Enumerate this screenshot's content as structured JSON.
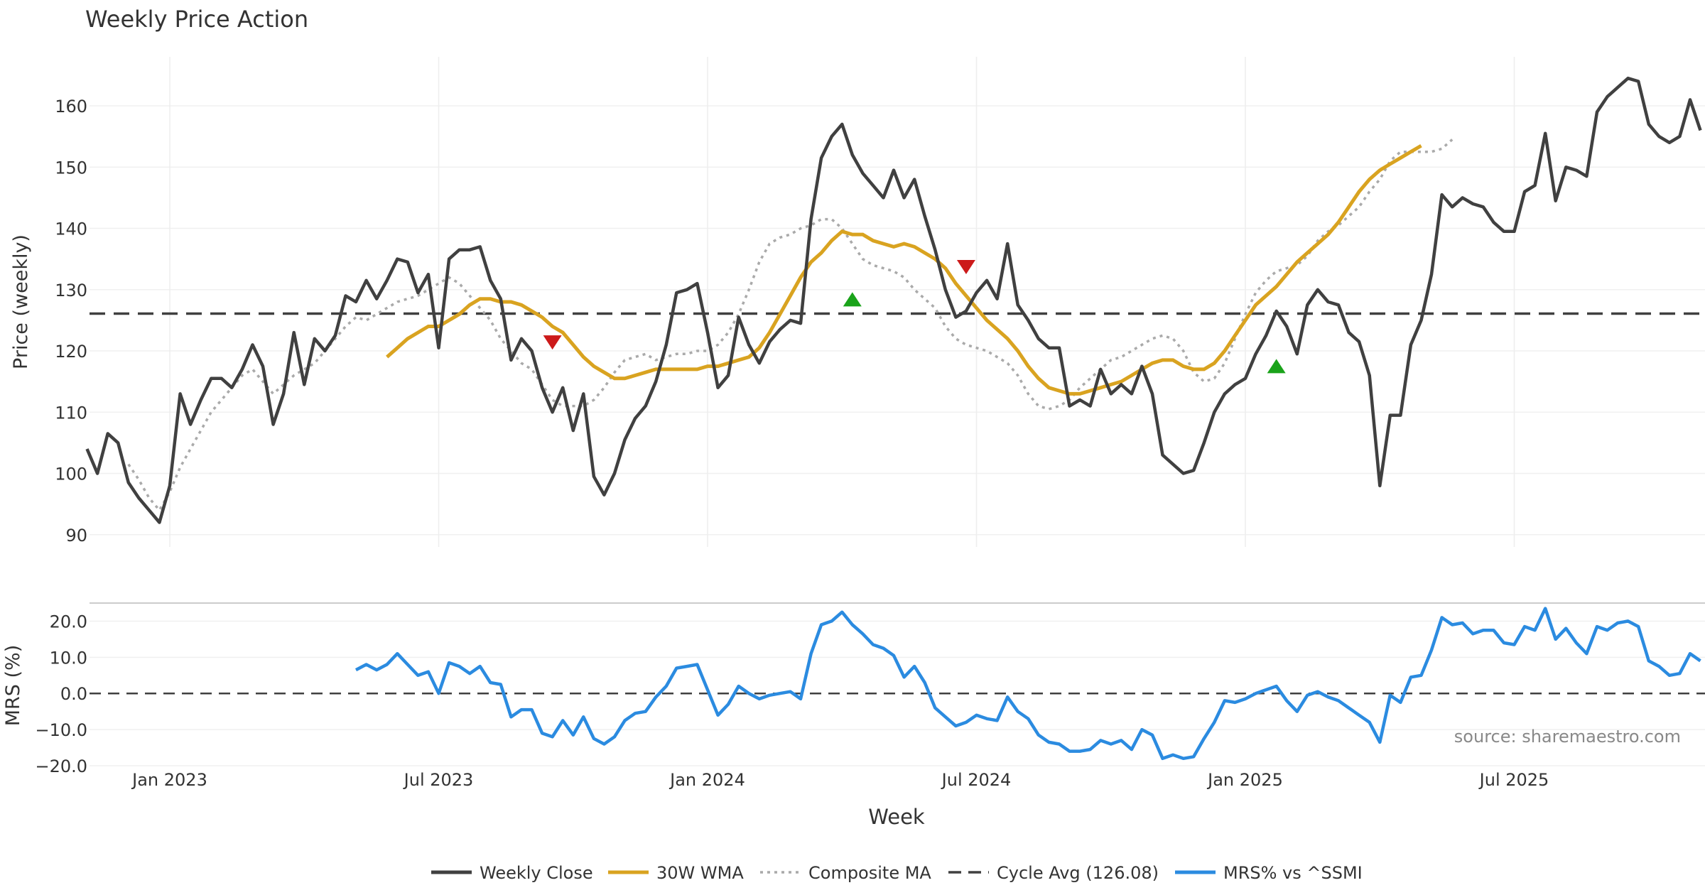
{
  "chart_data": {
    "type": "line",
    "title": "Weekly Price Action",
    "xlabel": "Week",
    "x_tick_labels": [
      "Jan 2023",
      "Jul 2023",
      "Jan 2024",
      "Jul 2024",
      "Jan 2025",
      "Jul 2025"
    ],
    "x_tick_weeks": [
      0,
      26,
      52,
      78,
      104,
      130
    ],
    "price_panel": {
      "ylabel": "Price (weekly)",
      "ylim": [
        88,
        168
      ],
      "yticks": [
        90,
        100,
        110,
        120,
        130,
        140,
        150,
        160
      ],
      "series": [
        {
          "name": "Weekly Close",
          "color": "#404040",
          "start_week": -8,
          "values": [
            104,
            100,
            106.5,
            105,
            98.5,
            96,
            94,
            92,
            98,
            113,
            108,
            112,
            115.5,
            115.5,
            114,
            117,
            121,
            117.5,
            108,
            113,
            123,
            114.5,
            122,
            120,
            122.5,
            129,
            128,
            131.5,
            128.5,
            131.5,
            135,
            134.5,
            129.5,
            132.5,
            120.5,
            135,
            136.5,
            136.5,
            137,
            131.5,
            128.5,
            118.5,
            122,
            120,
            114,
            110,
            114,
            107,
            113,
            99.5,
            96.5,
            100,
            105.5,
            109,
            111,
            115,
            121,
            129.5,
            130,
            131,
            123,
            114,
            116,
            125.5,
            121,
            118,
            121.5,
            123.5,
            125,
            124.5,
            141.5,
            151.5,
            155,
            157,
            152,
            149,
            147,
            145,
            149.5,
            145,
            148,
            142,
            136.5,
            130,
            125.5,
            126.5,
            129.5,
            131.5,
            128.5,
            137.5,
            127.5,
            125,
            122,
            120.5,
            120.5,
            111,
            112,
            111,
            117,
            113,
            114.5,
            113,
            117.5,
            113,
            103,
            101.5,
            100,
            100.5,
            105,
            110,
            113,
            114.5,
            115.5,
            119.5,
            122.5,
            126.5,
            124,
            119.5,
            127.5,
            130,
            128,
            127.5,
            123,
            121.5,
            116,
            98,
            109.5,
            109.5,
            121,
            125,
            132.5,
            145.5,
            143.5,
            145,
            144,
            143.5,
            141,
            139.5,
            139.5,
            146,
            147,
            155.5,
            144.5,
            150,
            149.5,
            148.5,
            159,
            161.5,
            163,
            164.5,
            164,
            157,
            155,
            154,
            155,
            161,
            156
          ]
        },
        {
          "name": "30W WMA",
          "color": "#d9a320",
          "start_week": 21,
          "values": [
            119,
            120.5,
            122,
            123,
            124,
            124,
            125,
            126,
            127.5,
            128.5,
            128.5,
            128,
            128,
            127.5,
            126.5,
            125.5,
            124,
            123,
            121,
            119,
            117.5,
            116.5,
            115.5,
            115.5,
            116,
            116.5,
            117,
            117,
            117,
            117,
            117,
            117.5,
            117.5,
            118,
            118.5,
            119,
            120.5,
            123,
            126,
            129,
            132,
            134.5,
            136,
            138,
            139.5,
            139,
            139,
            138,
            137.5,
            137,
            137.5,
            137,
            136,
            135,
            133.5,
            131,
            129,
            127,
            125,
            123.5,
            122,
            120,
            117.5,
            115.5,
            114,
            113.5,
            113,
            113,
            113.5,
            114,
            114.5,
            115,
            116,
            117,
            118,
            118.5,
            118.5,
            117.5,
            117,
            117,
            118,
            120,
            122.5,
            125,
            127.5,
            129,
            130.5,
            132.5,
            134.5,
            136,
            137.5,
            139,
            141,
            143.5,
            146,
            148,
            149.5,
            150.5,
            151.5,
            152.5,
            153.5
          ]
        },
        {
          "name": "Composite MA",
          "color": "#aaaaaa",
          "start_week": -4,
          "values": [
            101.5,
            99,
            96,
            94,
            97,
            101,
            104,
            107,
            110,
            112,
            114,
            116,
            117,
            115,
            113,
            114.5,
            116,
            117,
            118,
            120,
            122,
            124,
            125.5,
            125,
            126,
            127,
            128,
            128.5,
            129,
            130,
            131,
            132,
            131,
            129,
            127,
            125,
            122,
            120,
            118,
            117,
            114.5,
            112,
            111,
            111,
            111,
            112,
            114,
            116.5,
            118.5,
            119,
            119.5,
            118.5,
            119,
            119.5,
            119.5,
            120,
            120,
            121,
            123,
            126,
            130,
            134.5,
            137.5,
            138.5,
            139,
            140,
            140.5,
            141.5,
            141.5,
            140,
            137.5,
            135,
            134,
            133.5,
            133,
            132,
            130,
            128.5,
            127,
            124,
            122,
            121,
            120.5,
            120,
            119,
            118,
            116,
            113,
            111,
            110.5,
            111,
            112,
            114,
            115.5,
            117,
            118.5,
            119,
            120,
            121,
            122,
            122.5,
            122,
            120,
            116.5,
            115,
            115.5,
            118,
            122,
            126,
            129.5,
            131.5,
            133,
            133.5,
            134,
            135.5,
            138,
            139.5,
            140.5,
            142,
            143.5,
            146,
            148,
            151,
            152.5,
            152.5,
            152.5,
            152.5,
            153,
            154.5
          ]
        },
        {
          "name": "Cycle Avg (126.08)",
          "color": "#404040",
          "constant": 126.08
        }
      ],
      "buy_signals": [
        {
          "week": 66,
          "price": 128.3
        },
        {
          "week": 107,
          "price": 117.4
        }
      ],
      "sell_signals": [
        {
          "week": 37,
          "price": 121.5
        },
        {
          "week": 77,
          "price": 133.8
        }
      ]
    },
    "mrs_panel": {
      "ylabel": "MRS (%)",
      "ylim": [
        -20,
        25
      ],
      "yticks": [
        -20.0,
        -10.0,
        0.0,
        10.0,
        20.0
      ],
      "ytick_labels": [
        "−20.0",
        "−10.0",
        "0.0",
        "10.0",
        "20.0"
      ],
      "series": [
        {
          "name": "MRS% vs ^SSMI",
          "color": "#2b8be0",
          "start_week": 18,
          "values": [
            6.5,
            8,
            6.5,
            8,
            11,
            8,
            5,
            6,
            0,
            8.5,
            7.5,
            5.5,
            7.5,
            3,
            2.5,
            -6.5,
            -4.5,
            -4.5,
            -11,
            -12,
            -7.5,
            -11.5,
            -6.5,
            -12.5,
            -14,
            -12,
            -7.5,
            -5.5,
            -5,
            -1,
            2,
            7,
            7.5,
            8,
            1,
            -6,
            -3,
            2,
            0,
            -1.5,
            -0.5,
            0,
            0.5,
            -1.5,
            11,
            19,
            20,
            22.5,
            19,
            16.5,
            13.5,
            12.5,
            10.5,
            4.5,
            7.5,
            3,
            -4,
            -6.5,
            -9,
            -8,
            -6,
            -7,
            -7.5,
            -1,
            -5,
            -7,
            -11.5,
            -13.5,
            -14,
            -16,
            -16,
            -15.5,
            -13,
            -14,
            -13,
            -15.5,
            -10,
            -11.5,
            -18,
            -17,
            -18,
            -17.5,
            -12.5,
            -8,
            -2,
            -2.5,
            -1.5,
            0,
            1,
            2,
            -2,
            -5,
            -0.5,
            0.5,
            -1,
            -2,
            -4,
            -6,
            -8,
            -13.5,
            -0.5,
            -2.5,
            4.5,
            5,
            12,
            21,
            19,
            19.5,
            16.5,
            17.5,
            17.5,
            14,
            13.5,
            18.5,
            17.5,
            23.5,
            15,
            18,
            14,
            11,
            18.5,
            17.5,
            19.5,
            20,
            18.5,
            9,
            7.5,
            5,
            5.5,
            11,
            9
          ]
        }
      ]
    },
    "annotation": "source: sharemaestro.com",
    "legend": {
      "placement": "bottom-center",
      "entries": [
        {
          "label": "Weekly Close",
          "style": "solid",
          "color": "#404040"
        },
        {
          "label": "30W WMA",
          "style": "solid",
          "color": "#d9a320"
        },
        {
          "label": "Composite MA",
          "style": "dotted",
          "color": "#aaaaaa"
        },
        {
          "label": "Cycle Avg (126.08)",
          "style": "dashed",
          "color": "#404040"
        },
        {
          "label": "MRS% vs ^SSMI",
          "style": "solid",
          "color": "#2b8be0"
        }
      ]
    }
  }
}
